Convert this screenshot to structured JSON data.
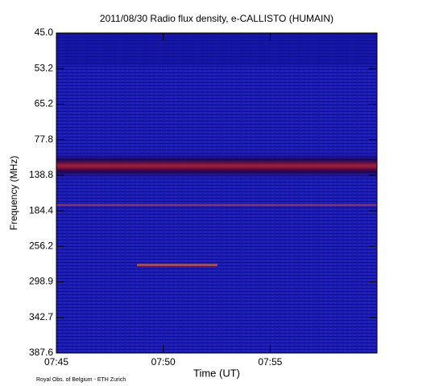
{
  "chart_data": {
    "type": "spectrogram",
    "title": "2011/08/30  Radio flux density, e-CALLISTO (HUMAIN)",
    "x_label": "Time (UT)",
    "y_label": "Frequency (MHz)",
    "footer": "Royal Obs. of Belgium - ETH Zurich",
    "xlim": [
      "07:45",
      "08:00"
    ],
    "xticks": [
      "07:45",
      "07:50",
      "07:55"
    ],
    "ylim": [
      45.0,
      387.6
    ],
    "yticks": [
      {
        "value": 45,
        "label": "45.0"
      },
      {
        "value": 53.2,
        "label": "53.2"
      },
      {
        "value": 65.2,
        "label": "65.2"
      },
      {
        "value": 77.8,
        "label": "77.8"
      },
      {
        "value": 138.8,
        "label": "138.8"
      },
      {
        "value": 184.4,
        "label": "184.4"
      },
      {
        "value": 256.2,
        "label": "256.2"
      },
      {
        "value": 298.9,
        "label": "298.9"
      },
      {
        "value": 342.7,
        "label": "342.7"
      },
      {
        "value": 387.6,
        "label": "387.6"
      }
    ],
    "y_axis_spacing": "channel"
  }
}
